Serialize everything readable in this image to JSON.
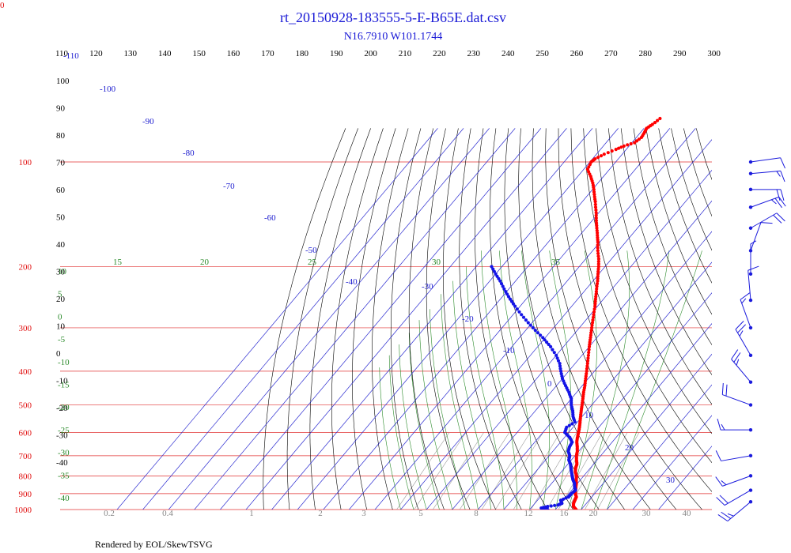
{
  "page": {
    "corner_label": "0",
    "title": "rt_20150928-183555-5-E-B65E.dat.csv",
    "subtitle": "N16.7910 W101.1744",
    "footer": "Rendered by EOL/SkewTSVG"
  },
  "colors": {
    "temperature": "#ff0000",
    "dewpoint": "#1414e6",
    "isobar": "#e03030",
    "isotherm": "#2a2ad0",
    "dry_adiabat": "#000000",
    "moist_adiabat": "#2a8a2a",
    "mixing_ratio": "#999999",
    "wind": "#1a1adc"
  },
  "chart_data": {
    "type": "scatter",
    "title": "rt_20150928-183555-5-E-B65E.dat.csv",
    "subtitle": "N16.7910 W101.1744",
    "pressure_axis": {
      "ylim": [
        1000,
        100
      ],
      "scale": "log",
      "tick_labels": [
        "100",
        "200",
        "300",
        "400",
        "500",
        "600",
        "700",
        "800",
        "900",
        "1000"
      ]
    },
    "potential_temperature_labels": [
      "110",
      "120",
      "130",
      "140",
      "150",
      "160",
      "170",
      "180",
      "190",
      "200",
      "210",
      "220",
      "230",
      "240",
      "250",
      "260",
      "270",
      "280",
      "290",
      "300"
    ],
    "dry_adiabat_left_labels": [
      "100",
      "90",
      "80",
      "70",
      "60",
      "50",
      "40",
      "30",
      "20",
      "10",
      "0",
      "-10",
      "-20",
      "-30",
      "-40"
    ],
    "isotherm_labels": [
      "-110",
      "-100",
      "-90",
      "-80",
      "-70",
      "-60",
      "-50",
      "-40",
      "-30",
      "-20",
      "-10",
      "0",
      "10",
      "20",
      "30"
    ],
    "moist_adiabat_labels": [
      "15",
      "20",
      "25",
      "30",
      "35"
    ],
    "moist_adiabat_left_labels": [
      "10",
      "5",
      "0",
      "-5",
      "-10",
      "-15",
      "-20",
      "-25",
      "-30",
      "-35",
      "-40"
    ],
    "mixing_ratio_labels": [
      "0.2",
      "0.4",
      "1",
      "2",
      "3",
      "5",
      "8",
      "12",
      "16",
      "20",
      "30",
      "40"
    ],
    "series": [
      {
        "name": "temperature",
        "unit": "°C",
        "points": [
          [
            1000,
            28
          ],
          [
            980,
            26
          ],
          [
            960,
            25
          ],
          [
            940,
            24.5
          ],
          [
            920,
            24
          ],
          [
            900,
            22.5
          ],
          [
            880,
            21.5
          ],
          [
            860,
            20.5
          ],
          [
            840,
            19.5
          ],
          [
            820,
            18.3
          ],
          [
            800,
            17.2
          ],
          [
            780,
            15.5
          ],
          [
            760,
            14.3
          ],
          [
            740,
            13.5
          ],
          [
            720,
            12
          ],
          [
            700,
            10.6
          ],
          [
            680,
            9.5
          ],
          [
            660,
            8
          ],
          [
            640,
            6.3
          ],
          [
            620,
            5
          ],
          [
            600,
            3.8
          ],
          [
            580,
            2.5
          ],
          [
            560,
            1
          ],
          [
            540,
            -0.6
          ],
          [
            520,
            -2.2
          ],
          [
            500,
            -3.8
          ],
          [
            480,
            -5.5
          ],
          [
            460,
            -7.3
          ],
          [
            440,
            -9
          ],
          [
            420,
            -11
          ],
          [
            400,
            -13
          ],
          [
            380,
            -15.2
          ],
          [
            360,
            -17.5
          ],
          [
            340,
            -20
          ],
          [
            320,
            -22.5
          ],
          [
            300,
            -25.2
          ],
          [
            280,
            -28
          ],
          [
            260,
            -31
          ],
          [
            240,
            -34.5
          ],
          [
            220,
            -38.2
          ],
          [
            200,
            -42.5
          ],
          [
            190,
            -45
          ],
          [
            180,
            -48
          ],
          [
            170,
            -50.8
          ],
          [
            160,
            -54
          ],
          [
            150,
            -57.5
          ],
          [
            140,
            -61
          ],
          [
            130,
            -65
          ],
          [
            120,
            -69.5
          ],
          [
            115,
            -72
          ],
          [
            110,
            -75
          ],
          [
            105,
            -78.5
          ],
          [
            100,
            -79.5
          ],
          [
            98,
            -79
          ],
          [
            95,
            -77
          ],
          [
            92,
            -74
          ],
          [
            90,
            -72
          ],
          [
            88,
            -69
          ],
          [
            85,
            -68
          ],
          [
            82,
            -68.5
          ],
          [
            80,
            -69
          ],
          [
            78,
            -68
          ],
          [
            75,
            -67
          ]
        ]
      },
      {
        "name": "dewpoint",
        "unit": "°C",
        "points": [
          [
            1000,
            17
          ],
          [
            990,
            14
          ],
          [
            980,
            16
          ],
          [
            970,
            19.5
          ],
          [
            960,
            20.5
          ],
          [
            940,
            19
          ],
          [
            920,
            21
          ],
          [
            900,
            21
          ],
          [
            880,
            21.5
          ],
          [
            860,
            20
          ],
          [
            840,
            18.8
          ],
          [
            820,
            17
          ],
          [
            800,
            15.5
          ],
          [
            780,
            14
          ],
          [
            760,
            12.5
          ],
          [
            740,
            11
          ],
          [
            720,
            9
          ],
          [
            700,
            8
          ],
          [
            680,
            6
          ],
          [
            660,
            5
          ],
          [
            640,
            4.5
          ],
          [
            620,
            2
          ],
          [
            600,
            -1.5
          ],
          [
            580,
            -2.5
          ],
          [
            560,
            -1
          ],
          [
            540,
            -3.5
          ],
          [
            520,
            -5.5
          ],
          [
            500,
            -8
          ],
          [
            480,
            -10
          ],
          [
            460,
            -13
          ],
          [
            440,
            -16.5
          ],
          [
            420,
            -20
          ],
          [
            400,
            -23
          ],
          [
            380,
            -26
          ],
          [
            360,
            -30
          ],
          [
            340,
            -35
          ],
          [
            320,
            -41
          ],
          [
            300,
            -48
          ],
          [
            280,
            -55
          ],
          [
            260,
            -62
          ],
          [
            240,
            -69
          ],
          [
            220,
            -76
          ],
          [
            200,
            -84
          ]
        ]
      }
    ],
    "winds": [
      {
        "p": 100,
        "dir": 262,
        "spd": 10
      },
      {
        "p": 108,
        "dir": 265,
        "spd": 15
      },
      {
        "p": 120,
        "dir": 270,
        "spd": 20
      },
      {
        "p": 135,
        "dir": 250,
        "spd": 25
      },
      {
        "p": 155,
        "dir": 240,
        "spd": 20
      },
      {
        "p": 180,
        "dir": 200,
        "spd": 10
      },
      {
        "p": 210,
        "dir": 180,
        "spd": 5
      },
      {
        "p": 250,
        "dir": 175,
        "spd": 10
      },
      {
        "p": 300,
        "dir": 160,
        "spd": 15
      },
      {
        "p": 360,
        "dir": 150,
        "spd": 25
      },
      {
        "p": 430,
        "dir": 140,
        "spd": 25
      },
      {
        "p": 500,
        "dir": 110,
        "spd": 20
      },
      {
        "p": 590,
        "dir": 90,
        "spd": 15
      },
      {
        "p": 700,
        "dir": 80,
        "spd": 10
      },
      {
        "p": 800,
        "dir": 70,
        "spd": 15
      },
      {
        "p": 880,
        "dir": 60,
        "spd": 20
      },
      {
        "p": 950,
        "dir": 50,
        "spd": 25
      }
    ]
  }
}
